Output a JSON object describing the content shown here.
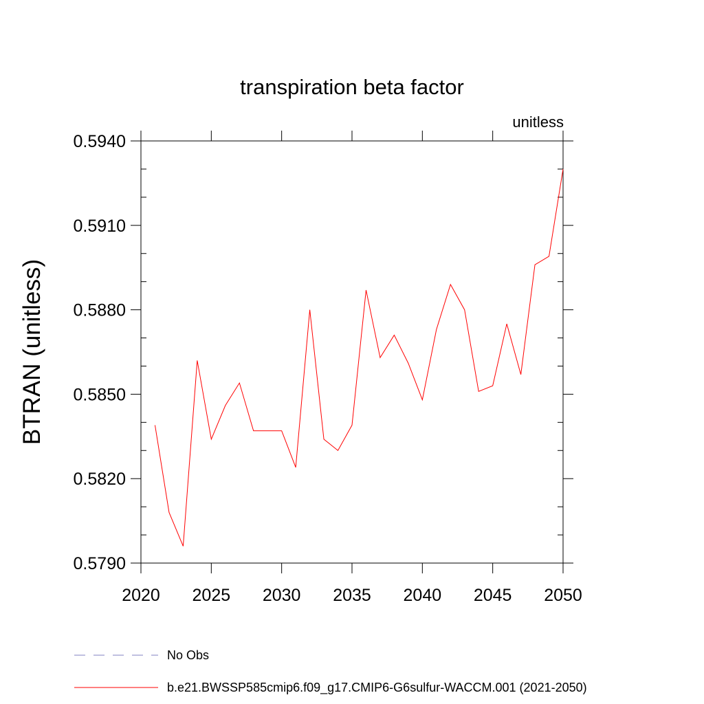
{
  "chart_data": {
    "type": "line",
    "title": "transpiration beta factor",
    "units_label": "unitless",
    "xlabel": "",
    "ylabel": "BTRAN  (unitless)",
    "xlim": [
      2020,
      2050
    ],
    "ylim": [
      0.579,
      0.594
    ],
    "xticks": [
      2020,
      2025,
      2030,
      2035,
      2040,
      2045,
      2050
    ],
    "yticks": [
      0.579,
      0.582,
      0.585,
      0.588,
      0.591,
      0.594
    ],
    "ytick_labels": [
      "0.5790",
      "0.5820",
      "0.5850",
      "0.5880",
      "0.5910",
      "0.5940"
    ],
    "grid": false,
    "legend_position": "bottom",
    "series": [
      {
        "name": "No Obs",
        "color": "#8080c0",
        "dash": "dashed",
        "x": [],
        "values": []
      },
      {
        "name": "b.e21.BWSSP585cmip6.f09_g17.CMIP6-G6sulfur-WACCM.001 (2021-2050)",
        "color": "#ff0000",
        "dash": "solid",
        "x": [
          2021,
          2022,
          2023,
          2024,
          2025,
          2026,
          2027,
          2028,
          2029,
          2030,
          2031,
          2032,
          2033,
          2034,
          2035,
          2036,
          2037,
          2038,
          2039,
          2040,
          2041,
          2042,
          2043,
          2044,
          2045,
          2046,
          2047,
          2048,
          2049,
          2050
        ],
        "values": [
          0.5839,
          0.5808,
          0.5796,
          0.5862,
          0.5834,
          0.5846,
          0.5854,
          0.5837,
          0.5837,
          0.5837,
          0.5824,
          0.588,
          0.5834,
          0.583,
          0.5839,
          0.5887,
          0.5863,
          0.5871,
          0.5861,
          0.5848,
          0.5873,
          0.5889,
          0.588,
          0.5851,
          0.5853,
          0.5875,
          0.5857,
          0.5896,
          0.5899,
          0.593
        ]
      }
    ]
  }
}
